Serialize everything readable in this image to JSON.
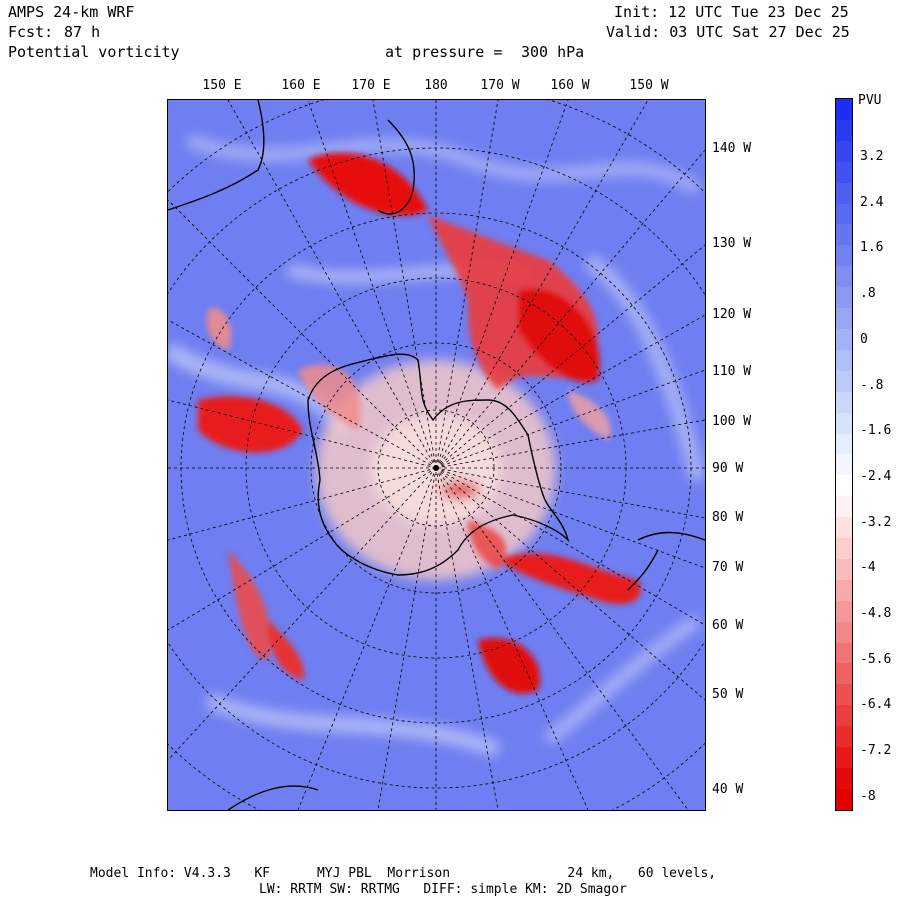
{
  "header": {
    "model": "AMPS 24-km WRF",
    "init": "Init: 12 UTC Tue 23 Dec 25",
    "fcst_label": "Fcst:",
    "fcst_value": "87 h",
    "valid": "Valid: 03 UTC Sat 27 Dec 25",
    "field": "Potential vorticity",
    "level_label": "at pressure =",
    "level_value": "300 hPa"
  },
  "top_lon_labels": [
    "150 E",
    "160 E",
    "170 E",
    "180",
    "170 W",
    "160 W",
    "150 W"
  ],
  "right_lon_labels": [
    "140 W",
    "130 W",
    "120 W",
    "110 W",
    "100 W",
    "90 W",
    "80 W",
    "70 W",
    "60 W",
    "50 W",
    "40 W"
  ],
  "colorbar": {
    "title": "PVU",
    "labels": [
      "3.2",
      "2.4",
      "1.6",
      ".8",
      "0",
      "-.8",
      "-1.6",
      "-2.4",
      "-3.2",
      "-4",
      "-4.8",
      "-5.6",
      "-6.4",
      "-7.2",
      "-8"
    ],
    "colors": [
      "#1e2ef5",
      "#2a3af4",
      "#3646f3",
      "#4252f2",
      "#4e5ef1",
      "#5a6af0",
      "#6676f0",
      "#7282f0",
      "#7e8ef1",
      "#8a9af2",
      "#96a6f3",
      "#a2b2f5",
      "#aebef7",
      "#bccaf8",
      "#cad6fa",
      "#d8e2fb",
      "#e6eefd",
      "#f4f8fe",
      "#ffffff",
      "#fff2f2",
      "#fde0e0",
      "#fbcece",
      "#f9bcbc",
      "#f7aaaa",
      "#f59898",
      "#f38686",
      "#f17474",
      "#ef6262",
      "#ed5050",
      "#eb3e3e",
      "#e92c2c",
      "#e71a1a",
      "#e50a0a",
      "#e30000"
    ]
  },
  "footer": {
    "line1": "Model Info: V4.3.3   KF      MYJ PBL  Morrison               24 km,   60 levels,",
    "line2": "LW: RRTM SW: RRTMG   DIFF: simple KM: 2D Smagor"
  },
  "colors": {
    "positive_pv": "#2a3af4",
    "negative_pv": "#e30000",
    "background_field": "#6f7ef0"
  }
}
